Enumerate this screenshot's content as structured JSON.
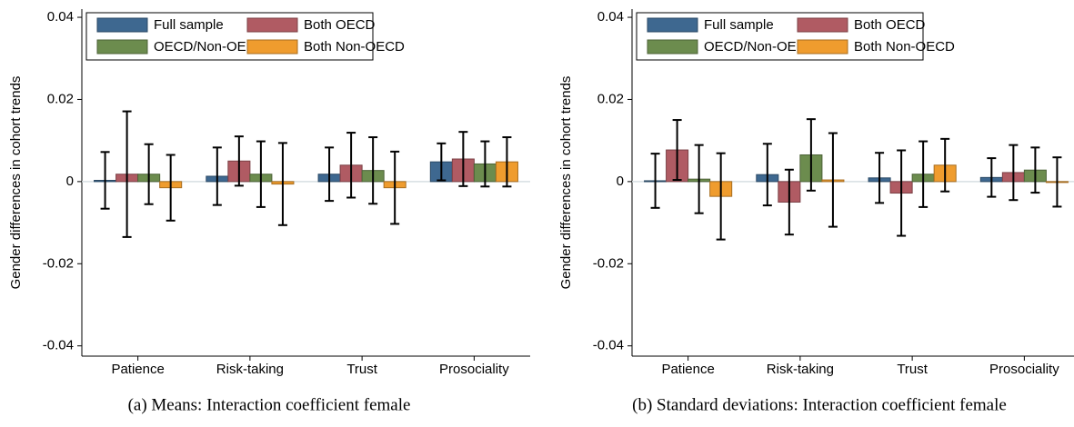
{
  "chart_data": [
    {
      "type": "bar",
      "y_label": "Gender differences in cohort trends",
      "caption": "(a) Means: Interaction coefficient female",
      "categories": [
        "Patience",
        "Risk-taking",
        "Trust",
        "Prosociality"
      ],
      "series": [
        {
          "name": "Full sample",
          "color": "#3e6890",
          "values": [
            0.0003,
            0.0013,
            0.0018,
            0.0048
          ],
          "errors": [
            0.0069,
            0.007,
            0.0065,
            0.0045
          ]
        },
        {
          "name": "Both OECD",
          "color": "#b05b63",
          "values": [
            0.0018,
            0.005,
            0.004,
            0.0055
          ],
          "errors": [
            0.0153,
            0.006,
            0.0079,
            0.0066
          ]
        },
        {
          "name": "OECD/Non-OECD",
          "color": "#6c8c4e",
          "values": [
            0.0018,
            0.0018,
            0.0027,
            0.0043
          ],
          "errors": [
            0.0073,
            0.008,
            0.0081,
            0.0055
          ]
        },
        {
          "name": "Both Non-OECD",
          "color": "#ef9c2e",
          "values": [
            -0.0015,
            -0.0006,
            -0.0015,
            0.0048
          ],
          "errors": [
            0.008,
            0.01,
            0.0088,
            0.006
          ]
        }
      ],
      "ylim": [
        -0.0425,
        0.042
      ],
      "yticks": [
        -0.04,
        -0.02,
        0,
        0.02,
        0.04
      ],
      "zero_line": true,
      "legend": "top"
    },
    {
      "type": "bar",
      "y_label": "Gender differences in cohort trends",
      "caption": "(b) Standard deviations: Interaction coefficient female",
      "categories": [
        "Patience",
        "Risk-taking",
        "Trust",
        "Prosociality"
      ],
      "series": [
        {
          "name": "Full sample",
          "color": "#3e6890",
          "values": [
            0.0002,
            0.0017,
            0.0009,
            0.001
          ],
          "errors": [
            0.0066,
            0.0075,
            0.0061,
            0.0047
          ]
        },
        {
          "name": "Both OECD",
          "color": "#b05b63",
          "values": [
            0.0077,
            -0.005,
            -0.0028,
            0.0022
          ],
          "errors": [
            0.0073,
            0.0079,
            0.0104,
            0.0067
          ]
        },
        {
          "name": "OECD/Non-OECD",
          "color": "#6c8c4e",
          "values": [
            0.0006,
            0.0065,
            0.0018,
            0.0028
          ],
          "errors": [
            0.0083,
            0.0087,
            0.008,
            0.0055
          ]
        },
        {
          "name": "Both Non-OECD",
          "color": "#ef9c2e",
          "values": [
            -0.0036,
            0.0004,
            0.004,
            -0.0001
          ],
          "errors": [
            0.0105,
            0.0114,
            0.0064,
            0.006
          ]
        }
      ],
      "ylim": [
        -0.0425,
        0.042
      ],
      "yticks": [
        -0.04,
        -0.02,
        0,
        0.02,
        0.04
      ],
      "zero_line": true,
      "legend": "top"
    }
  ]
}
